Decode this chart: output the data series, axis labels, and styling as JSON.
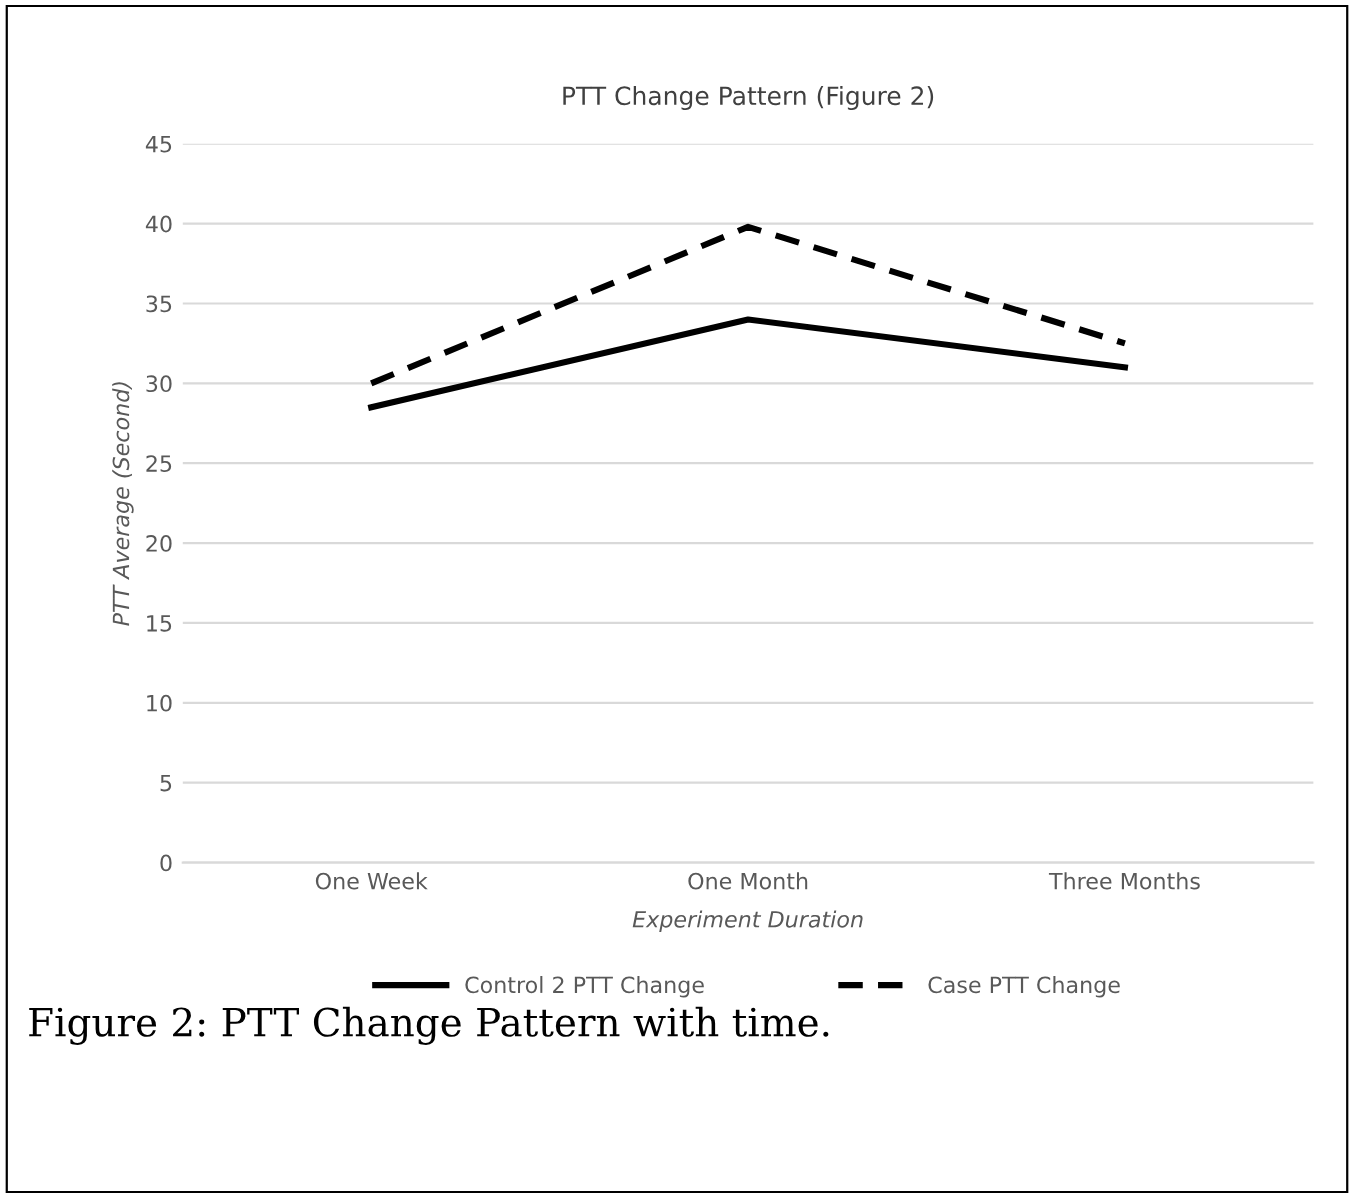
{
  "chart_data": {
    "type": "line",
    "title": "PTT Change Pattern (Figure 2)",
    "xlabel": "Experiment Duration",
    "ylabel": "PTT Average (Second)",
    "categories": [
      "One Week",
      "One Month",
      "Three Months"
    ],
    "series": [
      {
        "name": "Control 2 PTT Change",
        "color": "#000000",
        "line_style": "solid",
        "values": [
          28.5,
          34,
          31
        ]
      },
      {
        "name": "Case PTT Change",
        "color": "#000000",
        "line_style": "dashed",
        "values": [
          30,
          39.8,
          32.5
        ]
      }
    ],
    "ylim": [
      0,
      45
    ],
    "yticks": [
      0,
      5,
      10,
      15,
      20,
      25,
      30,
      35,
      40,
      45
    ],
    "grid": "y",
    "legend": "bottom",
    "annotations": [
      "Figure 2: PTT Change Pattern with time."
    ]
  }
}
